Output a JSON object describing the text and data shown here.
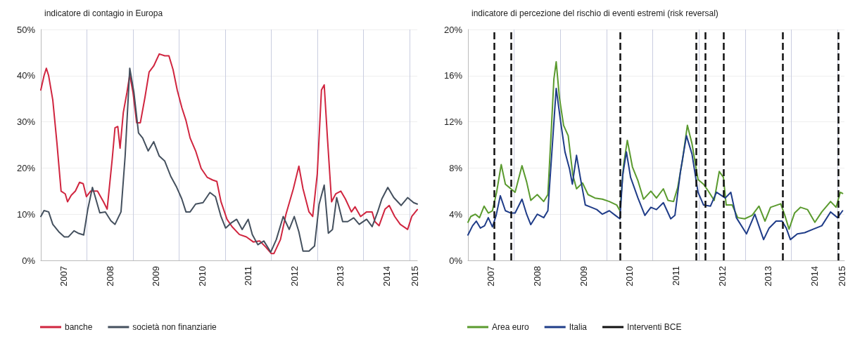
{
  "chart_data": [
    {
      "type": "line",
      "title": "indicatore di contagio in Europa",
      "legend": "bottom left",
      "grid": true,
      "marker": "none",
      "line_style": "solid",
      "xlim": [
        2007,
        2015.17
      ],
      "xticks": [
        {
          "value": 2007.5,
          "label": "2007"
        },
        {
          "value": 2008,
          "label": null
        },
        {
          "value": 2008.5,
          "label": "2008"
        },
        {
          "value": 2009,
          "label": null
        },
        {
          "value": 2009.5,
          "label": "2009"
        },
        {
          "value": 2010,
          "label": null
        },
        {
          "value": 2010.5,
          "label": "2010"
        },
        {
          "value": 2011,
          "label": null
        },
        {
          "value": 2011.5,
          "label": "2011"
        },
        {
          "value": 2012,
          "label": null
        },
        {
          "value": 2012.5,
          "label": "2012"
        },
        {
          "value": 2013,
          "label": null
        },
        {
          "value": 2013.5,
          "label": "2013"
        },
        {
          "value": 2014,
          "label": null
        },
        {
          "value": 2014.5,
          "label": "2014"
        },
        {
          "value": 2015,
          "label": null
        },
        {
          "value": 2015.12,
          "label": "2015"
        }
      ],
      "ylim": [
        0,
        50
      ],
      "yticks": [
        {
          "value": 0,
          "label": "0%"
        },
        {
          "value": 10,
          "label": "10%"
        },
        {
          "value": 20,
          "label": "20%"
        },
        {
          "value": 30,
          "label": "30%"
        },
        {
          "value": 40,
          "label": "40%"
        },
        {
          "value": 50,
          "label": "50%"
        }
      ],
      "series": [
        {
          "name": "banche",
          "color": "#d0253f",
          "x": [
            2007.0,
            2007.07,
            2007.12,
            2007.17,
            2007.26,
            2007.35,
            2007.44,
            2007.53,
            2007.58,
            2007.66,
            2007.75,
            2007.84,
            2007.92,
            2007.99,
            2008.08,
            2008.23,
            2008.36,
            2008.44,
            2008.55,
            2008.61,
            2008.67,
            2008.72,
            2008.79,
            2008.87,
            2008.93,
            2009.0,
            2009.08,
            2009.16,
            2009.26,
            2009.35,
            2009.45,
            2009.57,
            2009.69,
            2009.78,
            2009.87,
            2009.96,
            2010.06,
            2010.15,
            2010.24,
            2010.36,
            2010.48,
            2010.61,
            2010.73,
            2010.82,
            2010.91,
            2011.04,
            2011.15,
            2011.31,
            2011.46,
            2011.61,
            2011.75,
            2011.88,
            2012.0,
            2012.06,
            2012.2,
            2012.32,
            2012.48,
            2012.6,
            2012.69,
            2012.82,
            2012.9,
            2013.0,
            2013.09,
            2013.15,
            2013.22,
            2013.31,
            2013.4,
            2013.51,
            2013.61,
            2013.74,
            2013.82,
            2013.94,
            2014.07,
            2014.19,
            2014.25,
            2014.34,
            2014.47,
            2014.56,
            2014.68,
            2014.8,
            2014.96,
            2015.05,
            2015.17
          ],
          "values": [
            36.9,
            40,
            41.6,
            40,
            34.7,
            25.4,
            15,
            14.4,
            12.7,
            14.1,
            15,
            16.9,
            16.6,
            13.8,
            15,
            15,
            12.7,
            11.1,
            22,
            28.7,
            29,
            24.3,
            32,
            36.4,
            40.2,
            36.4,
            29.8,
            29.8,
            35.3,
            40.8,
            42.1,
            44.7,
            44.3,
            44.3,
            41.3,
            36.9,
            33.1,
            30.3,
            26.5,
            23.7,
            19.9,
            18,
            17.4,
            17.1,
            12.7,
            8.9,
            7.3,
            5.6,
            5.1,
            4,
            4.2,
            2.9,
            1.5,
            1.5,
            4.5,
            10,
            15.5,
            20.4,
            15.5,
            10.5,
            9.5,
            18.8,
            36.9,
            38,
            26.5,
            12.7,
            14.4,
            15,
            13.3,
            10.5,
            11.6,
            9.5,
            10.5,
            10.5,
            8.4,
            7.5,
            11.1,
            11.9,
            9.5,
            7.8,
            6.7,
            9.5,
            11
          ]
        },
        {
          "name": "società non finanziarie",
          "color": "#44505e",
          "x": [
            2007.0,
            2007.07,
            2007.17,
            2007.26,
            2007.39,
            2007.51,
            2007.6,
            2007.72,
            2007.81,
            2007.93,
            2008.02,
            2008.12,
            2008.18,
            2008.28,
            2008.4,
            2008.52,
            2008.61,
            2008.74,
            2008.83,
            2008.93,
            2009.02,
            2009.12,
            2009.21,
            2009.33,
            2009.45,
            2009.57,
            2009.69,
            2009.82,
            2009.94,
            2010.06,
            2010.15,
            2010.24,
            2010.36,
            2010.52,
            2010.67,
            2010.79,
            2010.91,
            2011.01,
            2011.13,
            2011.25,
            2011.37,
            2011.5,
            2011.59,
            2011.71,
            2011.84,
            2011.99,
            2012.11,
            2012.26,
            2012.39,
            2012.5,
            2012.6,
            2012.69,
            2012.82,
            2012.94,
            2013.04,
            2013.15,
            2013.24,
            2013.33,
            2013.42,
            2013.55,
            2013.66,
            2013.79,
            2013.91,
            2014.07,
            2014.19,
            2014.31,
            2014.4,
            2014.53,
            2014.66,
            2014.82,
            2014.96,
            2015.09,
            2015.17
          ],
          "values": [
            9.5,
            10.8,
            10.5,
            7.8,
            6.2,
            5.1,
            5.1,
            6.4,
            5.9,
            5.5,
            11.1,
            15.8,
            13.8,
            10.3,
            10.5,
            8.6,
            7.8,
            10.5,
            22.6,
            41.6,
            36.4,
            27.6,
            26.5,
            23.7,
            25.7,
            22.6,
            21.5,
            18.2,
            16,
            13.3,
            10.5,
            10.5,
            12.2,
            12.5,
            14.7,
            13.8,
            9.5,
            7,
            8.1,
            8.9,
            6.7,
            8.9,
            5.6,
            3.4,
            4.2,
            1.8,
            4.5,
            9.5,
            6.7,
            9.5,
            6.2,
            2,
            2,
            3.1,
            12.2,
            16.3,
            5.9,
            6.7,
            13.6,
            8.4,
            8.4,
            9.2,
            7.8,
            8.9,
            7.3,
            10.5,
            13.3,
            15.8,
            13.6,
            11.9,
            13.6,
            12.5,
            12.2
          ]
        }
      ]
    },
    {
      "type": "line",
      "title": "indicatore di percezione del rischio di eventi estremi (risk reversal)",
      "legend": "bottom left",
      "grid": true,
      "marker": "none",
      "line_style": "solid",
      "xlim": [
        2007,
        2015.15
      ],
      "xticks": [
        {
          "value": 2007.5,
          "label": "2007"
        },
        {
          "value": 2008,
          "label": null
        },
        {
          "value": 2008.5,
          "label": "2008"
        },
        {
          "value": 2009,
          "label": null
        },
        {
          "value": 2009.5,
          "label": "2009"
        },
        {
          "value": 2010,
          "label": null
        },
        {
          "value": 2010.5,
          "label": "2010"
        },
        {
          "value": 2011,
          "label": null
        },
        {
          "value": 2011.5,
          "label": "2011"
        },
        {
          "value": 2012,
          "label": null
        },
        {
          "value": 2012.5,
          "label": "2012"
        },
        {
          "value": 2013,
          "label": null
        },
        {
          "value": 2013.5,
          "label": "2013"
        },
        {
          "value": 2014,
          "label": null
        },
        {
          "value": 2014.5,
          "label": "2014"
        },
        {
          "value": 2015,
          "label": null
        },
        {
          "value": 2015.1,
          "label": "2015"
        }
      ],
      "ylim": [
        0,
        20
      ],
      "yticks": [
        {
          "value": 0,
          "label": "0%"
        },
        {
          "value": 4,
          "label": "4%"
        },
        {
          "value": 8,
          "label": "8%"
        },
        {
          "value": 12,
          "label": "12%"
        },
        {
          "value": 16,
          "label": "16%"
        },
        {
          "value": 20,
          "label": "20%"
        }
      ],
      "ref_lines": [
        {
          "axis": "x",
          "value": 2007.57,
          "label": "Interventi BCE",
          "color": "#111111",
          "line_style": "dashed"
        },
        {
          "axis": "x",
          "value": 2007.93,
          "label": null,
          "color": "#111111",
          "line_style": "dashed"
        },
        {
          "axis": "x",
          "value": 2010.29,
          "label": null,
          "color": "#111111",
          "line_style": "dashed"
        },
        {
          "axis": "x",
          "value": 2011.94,
          "label": null,
          "color": "#111111",
          "line_style": "dashed"
        },
        {
          "axis": "x",
          "value": 2012.13,
          "label": null,
          "color": "#111111",
          "line_style": "dashed"
        },
        {
          "axis": "x",
          "value": 2012.54,
          "label": null,
          "color": "#111111",
          "line_style": "dashed"
        },
        {
          "axis": "x",
          "value": 2013.81,
          "label": null,
          "color": "#111111",
          "line_style": "dashed"
        },
        {
          "axis": "x",
          "value": 2015.01,
          "label": null,
          "color": "#111111",
          "line_style": "dashed"
        }
      ],
      "series": [
        {
          "name": "Area euro",
          "color": "#5a9a2e",
          "x": [
            2007.0,
            2007.06,
            2007.16,
            2007.25,
            2007.35,
            2007.44,
            2007.53,
            2007.62,
            2007.72,
            2007.81,
            2007.9,
            2008.02,
            2008.17,
            2008.27,
            2008.36,
            2008.5,
            2008.64,
            2008.73,
            2008.8,
            2008.86,
            2008.91,
            2008.98,
            2009.07,
            2009.17,
            2009.27,
            2009.35,
            2009.48,
            2009.6,
            2009.75,
            2009.91,
            2010.06,
            2010.22,
            2010.29,
            2010.37,
            2010.45,
            2010.56,
            2010.68,
            2010.8,
            2010.96,
            2011.08,
            2011.23,
            2011.33,
            2011.45,
            2011.54,
            2011.64,
            2011.75,
            2011.85,
            2011.98,
            2012.1,
            2012.22,
            2012.33,
            2012.44,
            2012.53,
            2012.59,
            2012.72,
            2012.84,
            2012.99,
            2013.15,
            2013.3,
            2013.43,
            2013.55,
            2013.77,
            2013.86,
            2013.95,
            2014.07,
            2014.2,
            2014.35,
            2014.51,
            2014.66,
            2014.85,
            2014.97,
            2015.06,
            2015.11
          ],
          "values": [
            3.3,
            3.8,
            4,
            3.7,
            4.7,
            4.1,
            4.3,
            5.9,
            8.3,
            6.6,
            6.3,
            5.9,
            8.2,
            6.8,
            5.2,
            5.7,
            5.1,
            5.7,
            11,
            15.7,
            17.2,
            14.1,
            11.7,
            10.8,
            7.4,
            6.2,
            6.7,
            5.7,
            5.4,
            5.3,
            5.1,
            4.8,
            4.3,
            8.3,
            10.4,
            8.1,
            6.9,
            5.3,
            6,
            5.4,
            6.2,
            5.2,
            5.1,
            6.3,
            8.6,
            11.7,
            10.1,
            7,
            6.6,
            5.9,
            5.2,
            7.7,
            7.2,
            4.8,
            4.8,
            3.7,
            3.6,
            3.9,
            4.7,
            3.4,
            4.6,
            4.9,
            3.9,
            2.7,
            4.1,
            4.6,
            4.4,
            3.3,
            4.2,
            5.1,
            4.6,
            5.9,
            5.8
          ]
        },
        {
          "name": "Italia",
          "color": "#1f3c88",
          "x": [
            2007.0,
            2007.1,
            2007.18,
            2007.27,
            2007.36,
            2007.44,
            2007.53,
            2007.61,
            2007.7,
            2007.81,
            2007.93,
            2008.02,
            2008.17,
            2008.27,
            2008.36,
            2008.5,
            2008.64,
            2008.73,
            2008.81,
            2008.91,
            2009.01,
            2009.1,
            2009.2,
            2009.26,
            2009.35,
            2009.44,
            2009.54,
            2009.67,
            2009.79,
            2009.91,
            2010.06,
            2010.19,
            2010.29,
            2010.35,
            2010.43,
            2010.52,
            2010.68,
            2010.83,
            2010.96,
            2011.08,
            2011.23,
            2011.39,
            2011.48,
            2011.6,
            2011.73,
            2011.85,
            2011.98,
            2012.1,
            2012.25,
            2012.38,
            2012.57,
            2012.69,
            2012.81,
            2013.03,
            2013.21,
            2013.4,
            2013.52,
            2013.67,
            2013.8,
            2013.89,
            2013.98,
            2014.13,
            2014.29,
            2014.47,
            2014.66,
            2014.85,
            2015.0,
            2015.11
          ],
          "values": [
            2.2,
            3,
            3.4,
            2.8,
            3,
            3.7,
            2.9,
            3.9,
            5.6,
            4.3,
            4.1,
            4.1,
            5.3,
            4,
            3.1,
            4,
            3.7,
            4.3,
            9,
            14.9,
            11.9,
            9.4,
            7.9,
            6.6,
            9.1,
            7,
            4.8,
            4.6,
            4.4,
            4,
            4.3,
            3.9,
            3.6,
            7.4,
            9.4,
            7.2,
            5.4,
            3.9,
            4.6,
            4.4,
            5,
            3.6,
            3.9,
            7.7,
            10.8,
            9.2,
            5.9,
            4.8,
            4.7,
            5.9,
            5.4,
            5.9,
            3.7,
            2.3,
            4,
            1.8,
            2.8,
            3.4,
            3.4,
            2.8,
            1.8,
            2.3,
            2.4,
            2.7,
            3,
            4.2,
            3.7,
            4.3
          ]
        }
      ]
    }
  ]
}
